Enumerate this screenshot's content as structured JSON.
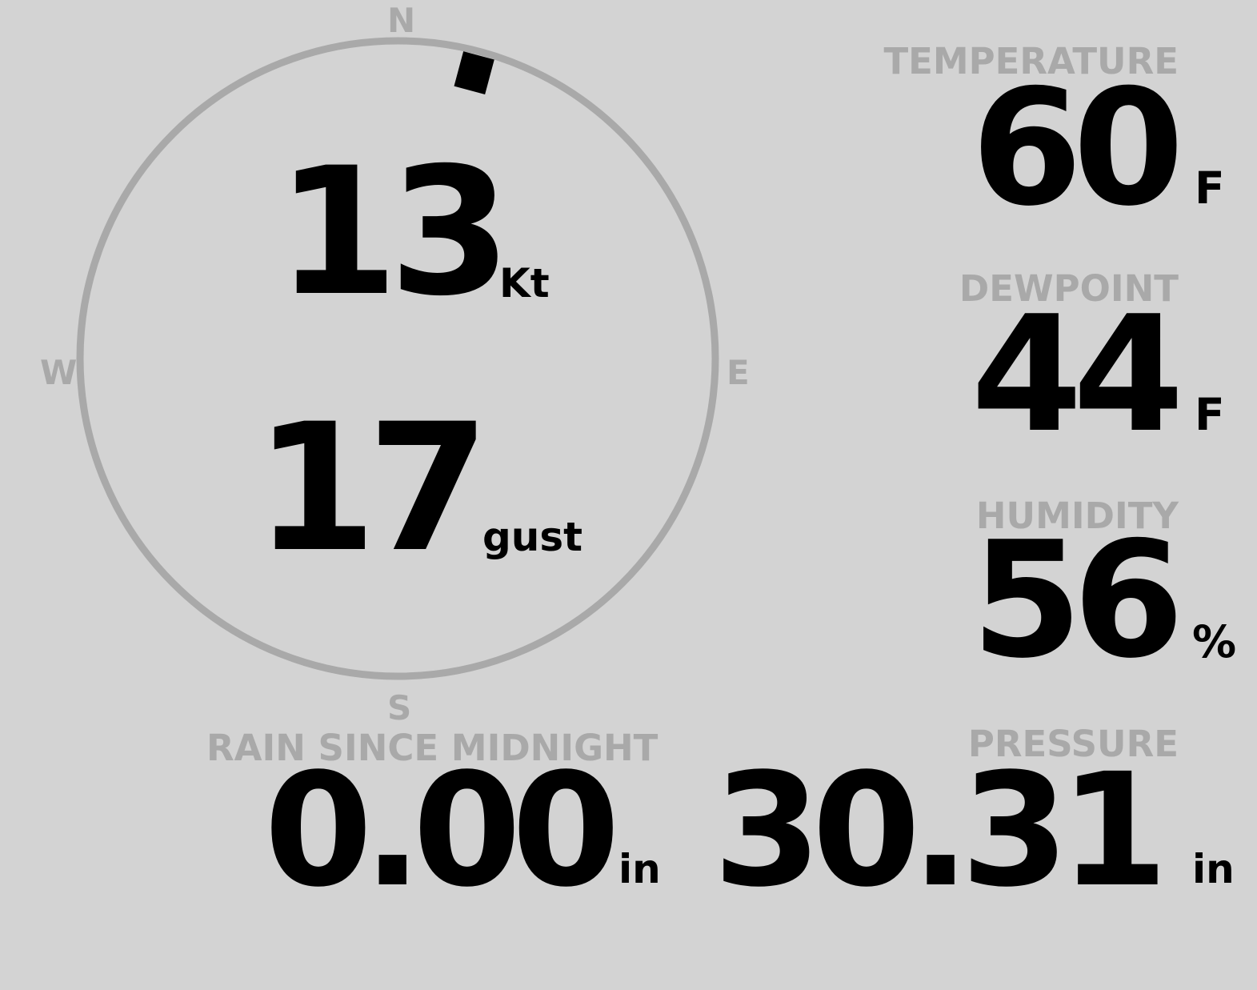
{
  "colors": {
    "background": "#d3d3d3",
    "label": "#a9a9a9",
    "value": "#000000",
    "compass_ring": "#a9a9a9"
  },
  "wind": {
    "compass": {
      "n": "N",
      "e": "E",
      "s": "S",
      "w": "W"
    },
    "direction_degrees": 15,
    "speed": "13",
    "speed_unit": "Kt",
    "gust": "17",
    "gust_unit": "gust"
  },
  "temperature": {
    "label": "TEMPERATURE",
    "value": "60",
    "unit": "F"
  },
  "dewpoint": {
    "label": "DEWPOINT",
    "value": "44",
    "unit": "F"
  },
  "humidity": {
    "label": "HUMIDITY",
    "value": "56",
    "unit": "%"
  },
  "rain": {
    "label": "RAIN SINCE MIDNIGHT",
    "value": "0.00",
    "unit": "in"
  },
  "pressure": {
    "label": "PRESSURE",
    "value": "30.31",
    "unit": "in"
  }
}
